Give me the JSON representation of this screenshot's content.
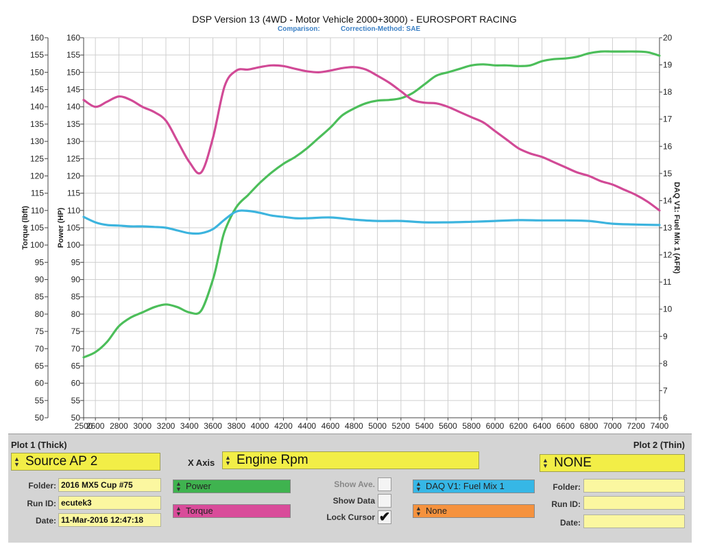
{
  "header": {
    "title": "DSP Version 13 (4WD - Motor Vehicle 2000+3000) - EUROSPORT RACING",
    "comparison_label": "Comparison:",
    "correction_method": "Correction-Method: SAE"
  },
  "chart_data": {
    "type": "line",
    "xlim": [
      2500,
      7400
    ],
    "x_ticks": [
      2500,
      2600,
      2800,
      3000,
      3200,
      3400,
      3600,
      3800,
      4000,
      4200,
      4400,
      4600,
      4800,
      5000,
      5200,
      5400,
      5600,
      5800,
      6000,
      6200,
      6400,
      6600,
      6800,
      7000,
      7200,
      7400
    ],
    "y_left_label": "Torque (lbft)",
    "y_left2_label": "Power (HP)",
    "y_right_label": "DAQ V1: Fuel Mix 1 (AFR)",
    "ylim_left": [
      50,
      160
    ],
    "ylim_right": [
      6,
      20
    ],
    "y_left_ticks": [
      50,
      55,
      60,
      65,
      70,
      75,
      80,
      85,
      90,
      95,
      100,
      105,
      110,
      115,
      120,
      125,
      130,
      135,
      140,
      145,
      150,
      155,
      160
    ],
    "y_right_ticks": [
      6,
      7,
      8,
      9,
      10,
      11,
      12,
      13,
      14,
      15,
      16,
      17,
      18,
      19,
      20
    ],
    "grid": true,
    "series": [
      {
        "name": "Power",
        "axis": "left",
        "color": "#4cbe5a",
        "x": [
          2500,
          2600,
          2700,
          2800,
          2900,
          3000,
          3100,
          3200,
          3300,
          3400,
          3500,
          3600,
          3650,
          3700,
          3800,
          3900,
          4000,
          4100,
          4200,
          4300,
          4400,
          4500,
          4600,
          4700,
          4800,
          4900,
          5000,
          5100,
          5200,
          5300,
          5400,
          5500,
          5600,
          5700,
          5800,
          5900,
          6000,
          6100,
          6200,
          6300,
          6400,
          6500,
          6600,
          6700,
          6800,
          6900,
          7000,
          7100,
          7200,
          7300,
          7400
        ],
        "values": [
          67.5,
          69,
          72,
          76.5,
          79,
          80.5,
          82,
          82.8,
          82,
          80.5,
          81,
          90,
          97,
          104,
          111,
          114.5,
          118,
          121,
          123.5,
          125.5,
          128,
          131,
          134,
          137.5,
          139.5,
          141,
          141.8,
          142,
          142.5,
          144,
          146.5,
          149,
          150,
          151,
          152,
          152.3,
          152,
          152,
          151.8,
          152,
          153.2,
          153.8,
          154,
          154.5,
          155.5,
          156,
          156,
          156,
          156,
          155.8,
          154.8
        ]
      },
      {
        "name": "Torque",
        "axis": "left",
        "color": "#d14a96",
        "x": [
          2500,
          2600,
          2700,
          2800,
          2900,
          3000,
          3100,
          3200,
          3300,
          3400,
          3500,
          3600,
          3700,
          3800,
          3900,
          4000,
          4100,
          4200,
          4300,
          4400,
          4500,
          4600,
          4700,
          4800,
          4900,
          5000,
          5100,
          5200,
          5300,
          5400,
          5500,
          5600,
          5700,
          5800,
          5900,
          6000,
          6100,
          6200,
          6300,
          6400,
          6500,
          6600,
          6700,
          6800,
          6900,
          7000,
          7100,
          7200,
          7300,
          7400
        ],
        "values": [
          142,
          140,
          141.5,
          143,
          142,
          140,
          138.5,
          136,
          130,
          124,
          121,
          131,
          146,
          150.5,
          150.8,
          151.5,
          152,
          151.8,
          151,
          150.3,
          150,
          150.5,
          151.2,
          151.5,
          150.8,
          149,
          147,
          144.5,
          142,
          141.2,
          141,
          140,
          138.5,
          137,
          135.5,
          133,
          130.5,
          128,
          126.5,
          125.5,
          124,
          122.5,
          121,
          120,
          118.5,
          117.5,
          116,
          114.5,
          112.5,
          110
        ]
      },
      {
        "name": "DAQ V1: Fuel Mix 1",
        "axis": "right",
        "color": "#3cb4de",
        "x": [
          2500,
          2600,
          2700,
          2800,
          2900,
          3000,
          3100,
          3200,
          3300,
          3400,
          3500,
          3600,
          3700,
          3800,
          3900,
          4000,
          4100,
          4200,
          4300,
          4400,
          4600,
          4800,
          5000,
          5200,
          5400,
          5600,
          5800,
          6000,
          6200,
          6400,
          6600,
          6800,
          7000,
          7200,
          7400
        ],
        "values": [
          13.4,
          13.2,
          13.1,
          13.08,
          13.05,
          13.05,
          13.03,
          13.0,
          12.9,
          12.8,
          12.8,
          12.95,
          13.3,
          13.6,
          13.62,
          13.55,
          13.45,
          13.4,
          13.35,
          13.35,
          13.38,
          13.3,
          13.25,
          13.25,
          13.2,
          13.2,
          13.22,
          13.25,
          13.28,
          13.27,
          13.27,
          13.25,
          13.15,
          13.12,
          13.1
        ]
      }
    ]
  },
  "panel": {
    "plot1_header": "Plot 1 (Thick)",
    "plot2_header": "Plot 2 (Thin)",
    "source": "Source AP 2",
    "x_axis_label": "X Axis",
    "x_axis_value": "Engine Rpm",
    "plot2_source": "NONE",
    "folder_label": "Folder:",
    "runid_label": "Run ID:",
    "date_label": "Date:",
    "folder_value": "2016 MX5 Cup #75",
    "runid_value": "ecutek3",
    "date_value": "11-Mar-2016 12:47:18",
    "sel_power": "Power",
    "sel_torque": "Torque",
    "sel_daq": "DAQ V1: Fuel Mix 1",
    "sel_none": "None",
    "show_ave": "Show Ave.",
    "show_data": "Show Data",
    "lock_cursor": "Lock Cursor",
    "lock_cursor_check": "✔",
    "plot2_folder_label": "Folder:",
    "plot2_runid_label": "Run ID:",
    "plot2_date_label": "Date:",
    "colors": {
      "power": "#3fb34f",
      "torque": "#d94c9a",
      "daq": "#36b7e6",
      "none": "#f5923e"
    }
  }
}
